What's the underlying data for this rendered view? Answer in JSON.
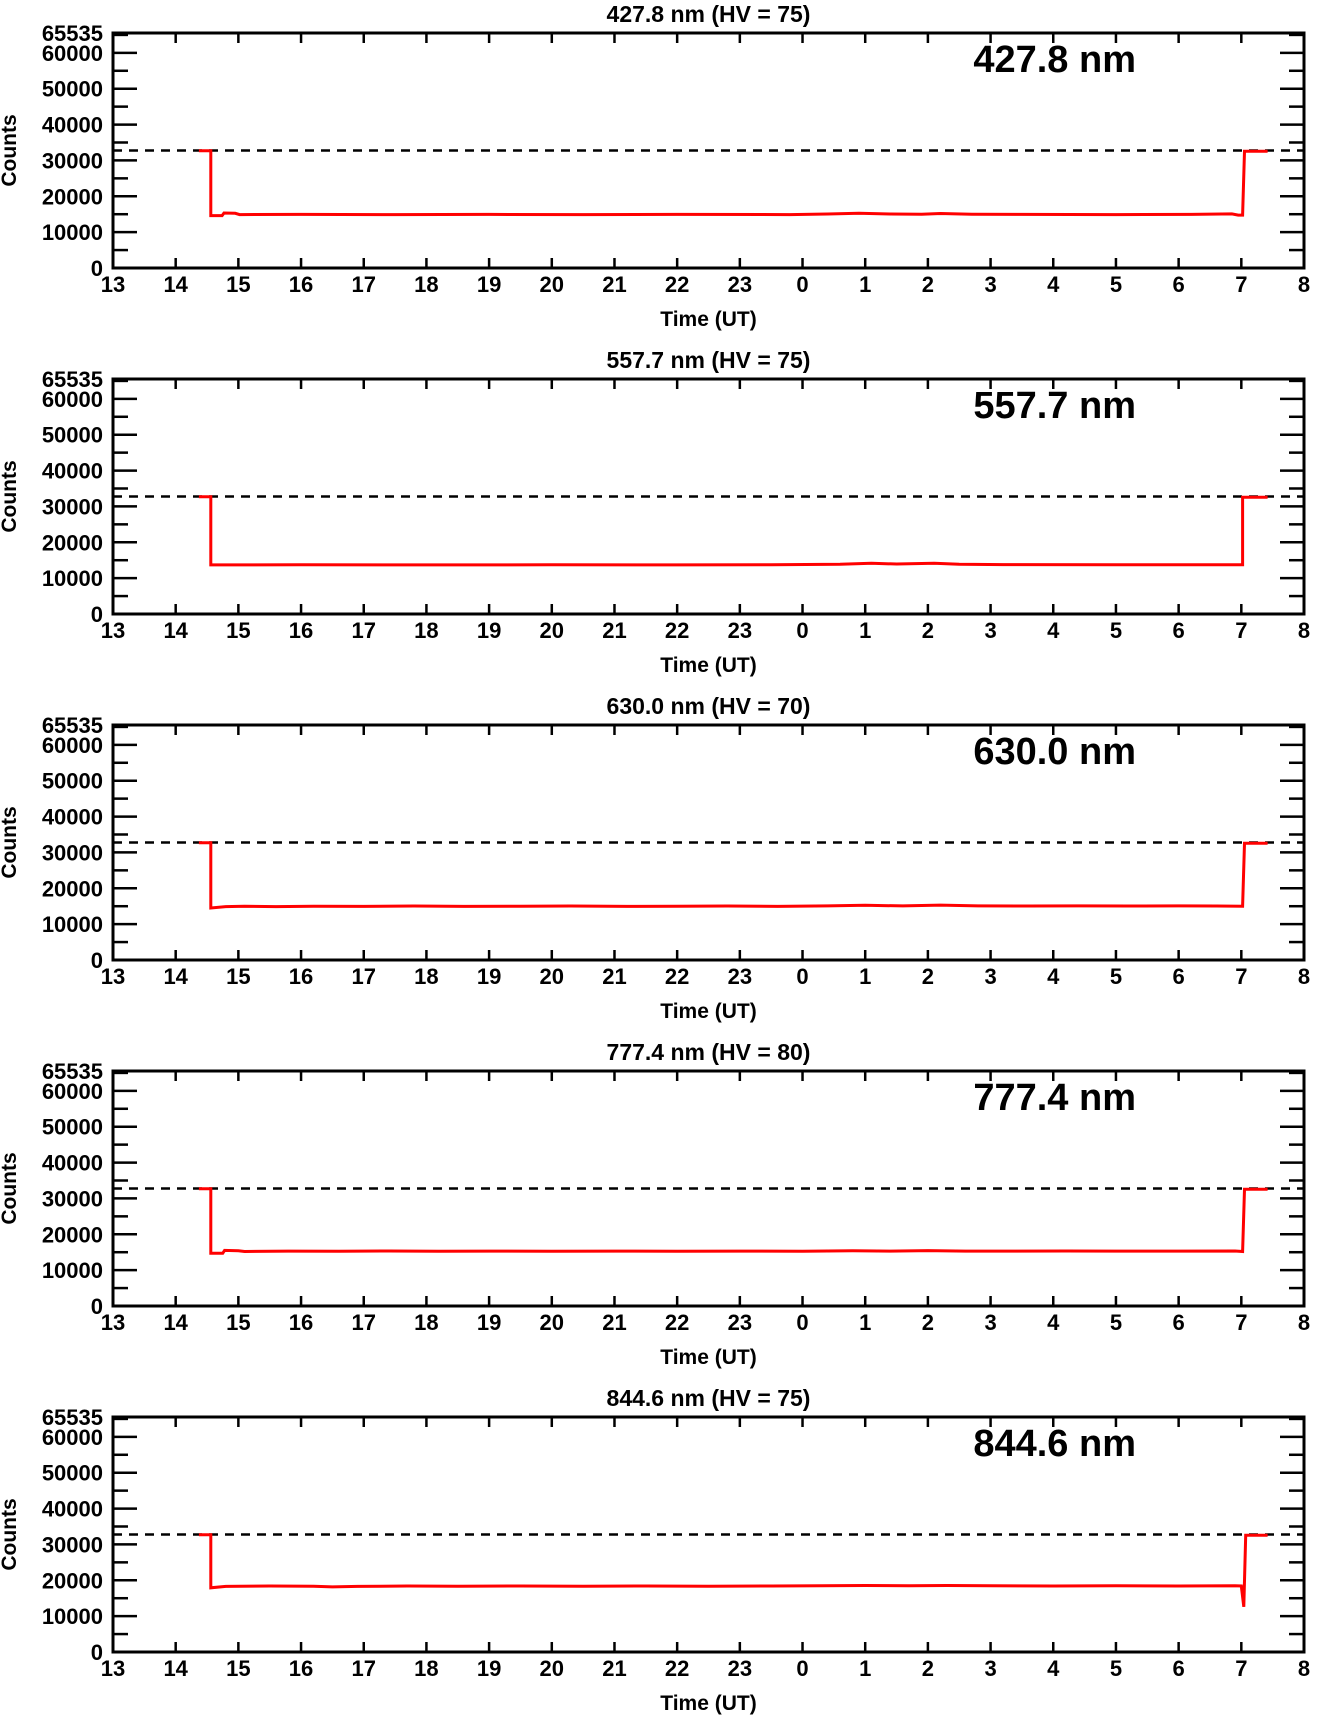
{
  "figure": {
    "background": "#ffffff",
    "axis_color": "#000000",
    "line_color": "#ff0000",
    "ref_line_color": "#000000"
  },
  "axes": {
    "x_range": [
      13,
      32
    ],
    "x_wraps_midnight": true,
    "x_tick_labels": [
      "13",
      "14",
      "15",
      "16",
      "17",
      "18",
      "19",
      "20",
      "21",
      "22",
      "23",
      "0",
      "1",
      "2",
      "3",
      "4",
      "5",
      "6",
      "7",
      "8"
    ],
    "xlabel": "Time (UT)",
    "ylabel": "Counts",
    "ylim": [
      0,
      65535
    ],
    "y_major_ticks": [
      {
        "value": 0,
        "label": "0"
      },
      {
        "value": 10000,
        "label": "10000"
      },
      {
        "value": 20000,
        "label": "20000"
      },
      {
        "value": 30000,
        "label": "30000"
      },
      {
        "value": 40000,
        "label": "40000"
      },
      {
        "value": 50000,
        "label": "50000"
      },
      {
        "value": 60000,
        "label": "60000"
      },
      {
        "value": 65535,
        "label": "65535"
      }
    ],
    "y_minor_ticks": [
      5000,
      15000,
      25000,
      35000,
      45000,
      55000,
      65000
    ],
    "ref_line_value": 32767,
    "grid": false,
    "legend": "none"
  },
  "chart_data": [
    {
      "type": "line",
      "title": "427.8 nm (HV = 75)",
      "label": "427.8 nm",
      "wavelength_nm": 427.8,
      "hv": 75,
      "xlabel": "Time (UT)",
      "ylabel": "Counts",
      "ylim": [
        0,
        65535
      ],
      "ref_line": 32767,
      "series": [
        {
          "name": "counts",
          "color": "#ff0000",
          "points": [
            [
              14.37,
              32700
            ],
            [
              14.56,
              32700
            ],
            [
              14.56,
              14600
            ],
            [
              14.74,
              14600
            ],
            [
              14.77,
              15350
            ],
            [
              14.95,
              15250
            ],
            [
              15.02,
              14900
            ],
            [
              16.0,
              14950
            ],
            [
              17.5,
              14900
            ],
            [
              19.0,
              14950
            ],
            [
              20.5,
              14900
            ],
            [
              22.0,
              14950
            ],
            [
              23.8,
              14900
            ],
            [
              24.4,
              15050
            ],
            [
              24.9,
              15250
            ],
            [
              25.4,
              15050
            ],
            [
              25.9,
              15000
            ],
            [
              26.2,
              15200
            ],
            [
              26.7,
              15000
            ],
            [
              27.5,
              14950
            ],
            [
              29.0,
              14900
            ],
            [
              30.2,
              14950
            ],
            [
              30.85,
              15100
            ],
            [
              30.95,
              14750
            ],
            [
              31.02,
              14750
            ],
            [
              31.05,
              32550
            ],
            [
              31.42,
              32550
            ]
          ]
        }
      ]
    },
    {
      "type": "line",
      "title": "557.7 nm (HV = 75)",
      "label": "557.7 nm",
      "wavelength_nm": 557.7,
      "hv": 75,
      "xlabel": "Time (UT)",
      "ylabel": "Counts",
      "ylim": [
        0,
        65535
      ],
      "ref_line": 32767,
      "series": [
        {
          "name": "counts",
          "color": "#ff0000",
          "points": [
            [
              14.37,
              32700
            ],
            [
              14.56,
              32700
            ],
            [
              14.56,
              13700
            ],
            [
              16.0,
              13720
            ],
            [
              18.0,
              13700
            ],
            [
              20.0,
              13730
            ],
            [
              22.0,
              13700
            ],
            [
              23.5,
              13720
            ],
            [
              24.6,
              13850
            ],
            [
              25.1,
              14150
            ],
            [
              25.5,
              13950
            ],
            [
              26.1,
              14150
            ],
            [
              26.5,
              13850
            ],
            [
              27.2,
              13780
            ],
            [
              29.0,
              13740
            ],
            [
              31.02,
              13760
            ],
            [
              31.02,
              32550
            ],
            [
              31.42,
              32550
            ]
          ]
        }
      ]
    },
    {
      "type": "line",
      "title": "630.0 nm (HV = 70)",
      "label": "630.0 nm",
      "wavelength_nm": 630.0,
      "hv": 70,
      "xlabel": "Time (UT)",
      "ylabel": "Counts",
      "ylim": [
        0,
        65535
      ],
      "ref_line": 32767,
      "series": [
        {
          "name": "counts",
          "color": "#ff0000",
          "points": [
            [
              14.37,
              32700
            ],
            [
              14.56,
              32700
            ],
            [
              14.56,
              14500
            ],
            [
              14.8,
              14900
            ],
            [
              15.1,
              15000
            ],
            [
              15.6,
              14900
            ],
            [
              16.2,
              15000
            ],
            [
              17.0,
              14950
            ],
            [
              17.8,
              15050
            ],
            [
              18.6,
              14950
            ],
            [
              19.5,
              15000
            ],
            [
              20.3,
              15050
            ],
            [
              21.2,
              14950
            ],
            [
              22.0,
              15000
            ],
            [
              22.8,
              15050
            ],
            [
              23.6,
              14950
            ],
            [
              24.4,
              15100
            ],
            [
              25.0,
              15250
            ],
            [
              25.6,
              15100
            ],
            [
              26.2,
              15300
            ],
            [
              26.8,
              15100
            ],
            [
              27.6,
              15050
            ],
            [
              28.4,
              15100
            ],
            [
              29.2,
              15050
            ],
            [
              30.0,
              15100
            ],
            [
              30.6,
              15050
            ],
            [
              31.02,
              15000
            ],
            [
              31.05,
              32550
            ],
            [
              31.42,
              32550
            ]
          ]
        }
      ]
    },
    {
      "type": "line",
      "title": "777.4 nm (HV = 80)",
      "label": "777.4 nm",
      "wavelength_nm": 777.4,
      "hv": 80,
      "xlabel": "Time (UT)",
      "ylabel": "Counts",
      "ylim": [
        0,
        65535
      ],
      "ref_line": 32767,
      "series": [
        {
          "name": "counts",
          "color": "#ff0000",
          "points": [
            [
              14.37,
              32700
            ],
            [
              14.56,
              32700
            ],
            [
              14.56,
              14700
            ],
            [
              14.75,
              14700
            ],
            [
              14.78,
              15500
            ],
            [
              15.0,
              15400
            ],
            [
              15.1,
              15200
            ],
            [
              15.8,
              15300
            ],
            [
              16.6,
              15250
            ],
            [
              17.4,
              15350
            ],
            [
              18.2,
              15250
            ],
            [
              19.0,
              15300
            ],
            [
              20.0,
              15250
            ],
            [
              21.0,
              15300
            ],
            [
              22.0,
              15250
            ],
            [
              23.0,
              15300
            ],
            [
              24.0,
              15250
            ],
            [
              24.8,
              15400
            ],
            [
              25.4,
              15300
            ],
            [
              26.0,
              15450
            ],
            [
              26.6,
              15300
            ],
            [
              27.4,
              15300
            ],
            [
              28.2,
              15350
            ],
            [
              29.0,
              15300
            ],
            [
              30.0,
              15300
            ],
            [
              30.9,
              15350
            ],
            [
              31.02,
              15200
            ],
            [
              31.05,
              32550
            ],
            [
              31.42,
              32550
            ]
          ]
        }
      ]
    },
    {
      "type": "line",
      "title": "844.6 nm (HV = 75)",
      "label": "844.6 nm",
      "wavelength_nm": 844.6,
      "hv": 75,
      "xlabel": "Time (UT)",
      "ylabel": "Counts",
      "ylim": [
        0,
        65535
      ],
      "ref_line": 32767,
      "series": [
        {
          "name": "counts",
          "color": "#ff0000",
          "points": [
            [
              14.37,
              32700
            ],
            [
              14.56,
              32700
            ],
            [
              14.56,
              17900
            ],
            [
              14.8,
              18300
            ],
            [
              15.5,
              18400
            ],
            [
              16.2,
              18350
            ],
            [
              16.5,
              18150
            ],
            [
              16.9,
              18300
            ],
            [
              17.7,
              18400
            ],
            [
              18.5,
              18350
            ],
            [
              19.5,
              18400
            ],
            [
              20.5,
              18350
            ],
            [
              21.5,
              18400
            ],
            [
              22.5,
              18350
            ],
            [
              23.5,
              18400
            ],
            [
              24.3,
              18450
            ],
            [
              25.0,
              18550
            ],
            [
              25.7,
              18450
            ],
            [
              26.3,
              18550
            ],
            [
              27.0,
              18450
            ],
            [
              28.0,
              18400
            ],
            [
              29.0,
              18450
            ],
            [
              30.0,
              18400
            ],
            [
              30.9,
              18450
            ],
            [
              31.0,
              18400
            ],
            [
              31.04,
              12600
            ],
            [
              31.07,
              32550
            ],
            [
              31.42,
              32550
            ]
          ]
        }
      ]
    }
  ]
}
